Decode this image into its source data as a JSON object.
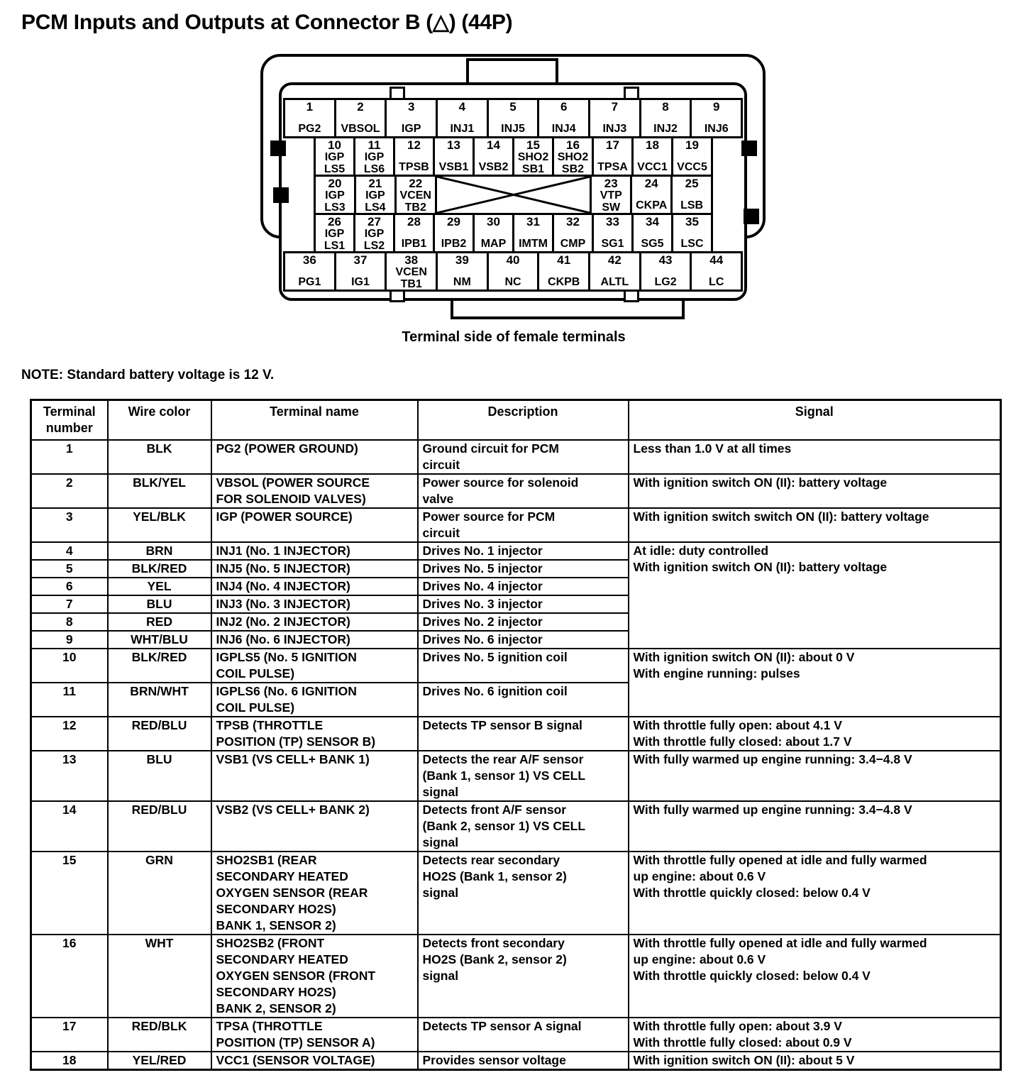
{
  "title": "PCM Inputs and Outputs at Connector B (△) (44P)",
  "connector": {
    "caption": "Terminal side of female terminals",
    "rows": [
      {
        "inset": false,
        "pins": [
          {
            "n": "1",
            "label": "PG2"
          },
          {
            "n": "2",
            "label": "VBSOL"
          },
          {
            "n": "3",
            "label": "IGP"
          },
          {
            "n": "4",
            "label": "INJ1"
          },
          {
            "n": "5",
            "label": "INJ5"
          },
          {
            "n": "6",
            "label": "INJ4"
          },
          {
            "n": "7",
            "label": "INJ3"
          },
          {
            "n": "8",
            "label": "INJ2"
          },
          {
            "n": "9",
            "label": "INJ6"
          }
        ]
      },
      {
        "inset": true,
        "pins": [
          {
            "n": "10",
            "label": "IGP\nLS5"
          },
          {
            "n": "11",
            "label": "IGP\nLS6"
          },
          {
            "n": "12",
            "label": "TPSB"
          },
          {
            "n": "13",
            "label": "VSB1"
          },
          {
            "n": "14",
            "label": "VSB2"
          },
          {
            "n": "15",
            "label": "SHO2\nSB1"
          },
          {
            "n": "16",
            "label": "SHO2\nSB2"
          },
          {
            "n": "17",
            "label": "TPSA"
          },
          {
            "n": "18",
            "label": "VCC1"
          },
          {
            "n": "19",
            "label": "VCC5"
          }
        ]
      },
      {
        "inset": true,
        "pins": [
          {
            "n": "20",
            "label": "IGP\nLS3"
          },
          {
            "n": "21",
            "label": "IGP\nLS4"
          },
          {
            "n": "22",
            "label": "VCEN\nTB2"
          },
          {
            "blocked": true,
            "span": 4
          },
          {
            "n": "23",
            "label": "VTP\nSW"
          },
          {
            "n": "24",
            "label": "CKPA"
          },
          {
            "n": "25",
            "label": "LSB"
          }
        ]
      },
      {
        "inset": true,
        "pins": [
          {
            "n": "26",
            "label": "IGP\nLS1"
          },
          {
            "n": "27",
            "label": "IGP\nLS2"
          },
          {
            "n": "28",
            "label": "IPB1"
          },
          {
            "n": "29",
            "label": "IPB2"
          },
          {
            "n": "30",
            "label": "MAP"
          },
          {
            "n": "31",
            "label": "IMTM"
          },
          {
            "n": "32",
            "label": "CMP"
          },
          {
            "n": "33",
            "label": "SG1"
          },
          {
            "n": "34",
            "label": "SG5"
          },
          {
            "n": "35",
            "label": "LSC"
          }
        ]
      },
      {
        "inset": false,
        "pins": [
          {
            "n": "36",
            "label": "PG1"
          },
          {
            "n": "37",
            "label": "IG1"
          },
          {
            "n": "38",
            "label": "VCEN\nTB1"
          },
          {
            "n": "39",
            "label": "NM"
          },
          {
            "n": "40",
            "label": "NC"
          },
          {
            "n": "41",
            "label": "CKPB"
          },
          {
            "n": "42",
            "label": "ALTL"
          },
          {
            "n": "43",
            "label": "LG2"
          },
          {
            "n": "44",
            "label": "LC"
          }
        ]
      }
    ]
  },
  "note": "NOTE: Standard battery voltage is 12 V.",
  "table": {
    "headers": [
      "Terminal\nnumber",
      "Wire color",
      "Terminal name",
      "Description",
      "Signal"
    ],
    "rows": [
      {
        "terminal": "1",
        "wire": "BLK",
        "name": "PG2 (POWER GROUND)",
        "desc": "Ground circuit for PCM\ncircuit",
        "signal": "Less than 1.0 V at all times"
      },
      {
        "terminal": "2",
        "wire": "BLK/YEL",
        "name": "VBSOL (POWER SOURCE\nFOR SOLENOID VALVES)",
        "desc": "Power source for solenoid\nvalve",
        "signal": "With ignition switch ON (II): battery voltage"
      },
      {
        "terminal": "3",
        "wire": "YEL/BLK",
        "name": "IGP (POWER SOURCE)",
        "desc": "Power source for PCM\ncircuit",
        "signal": "With ignition switch switch ON (II): battery voltage"
      },
      {
        "terminal": "4",
        "wire": "BRN",
        "name": "INJ1 (No. 1 INJECTOR)",
        "desc": "Drives No. 1 injector",
        "signal": "At idle: duty controlled\nWith ignition switch ON (II): battery voltage",
        "signal_rowspan": 6,
        "thin": true
      },
      {
        "terminal": "5",
        "wire": "BLK/RED",
        "name": "INJ5 (No. 5 INJECTOR)",
        "desc": "Drives No. 5 injector",
        "signal": null,
        "thin": true
      },
      {
        "terminal": "6",
        "wire": "YEL",
        "name": "INJ4 (No. 4 INJECTOR)",
        "desc": "Drives No. 4 injector",
        "signal": null,
        "thin": true
      },
      {
        "terminal": "7",
        "wire": "BLU",
        "name": "INJ3 (No. 3 INJECTOR)",
        "desc": "Drives No. 3 injector",
        "signal": null,
        "thin": true
      },
      {
        "terminal": "8",
        "wire": "RED",
        "name": "INJ2 (No. 2 INJECTOR)",
        "desc": "Drives No. 2 injector",
        "signal": null,
        "thin": true
      },
      {
        "terminal": "9",
        "wire": "WHT/BLU",
        "name": "INJ6 (No. 6 INJECTOR)",
        "desc": "Drives No. 6 injector",
        "signal": null,
        "thin": true
      },
      {
        "terminal": "10",
        "wire": "BLK/RED",
        "name": "IGPLS5 (No. 5 IGNITION\nCOIL PULSE)",
        "desc": "Drives No. 5 ignition coil",
        "signal": "With ignition switch ON (II): about 0 V\nWith engine running: pulses",
        "signal_rowspan": 2
      },
      {
        "terminal": "11",
        "wire": "BRN/WHT",
        "name": "IGPLS6 (No. 6 IGNITION\nCOIL PULSE)",
        "desc": "Drives No. 6 ignition coil",
        "signal": null
      },
      {
        "terminal": "12",
        "wire": "RED/BLU",
        "name": "TPSB (THROTTLE\nPOSITION (TP) SENSOR B)",
        "desc": "Detects TP sensor B signal",
        "signal": "With throttle fully open: about 4.1 V\nWith throttle fully closed: about 1.7 V"
      },
      {
        "terminal": "13",
        "wire": "BLU",
        "name": "VSB1 (VS CELL+ BANK 1)",
        "desc": "Detects the rear A/F sensor\n(Bank 1, sensor 1) VS CELL\nsignal",
        "signal": "With fully warmed up engine running: 3.4−4.8 V"
      },
      {
        "terminal": "14",
        "wire": "RED/BLU",
        "name": "VSB2 (VS CELL+ BANK 2)",
        "desc": "Detects front A/F sensor\n(Bank 2, sensor 1) VS CELL\nsignal",
        "signal": "With fully warmed up engine running: 3.4−4.8 V"
      },
      {
        "terminal": "15",
        "wire": "GRN",
        "name": "SHO2SB1 (REAR\nSECONDARY HEATED\nOXYGEN SENSOR (REAR\nSECONDARY HO2S)\nBANK 1, SENSOR 2)",
        "desc": "Detects rear secondary\nHO2S (Bank 1, sensor 2)\nsignal",
        "signal": "With throttle fully opened at idle and fully warmed\nup engine: about 0.6 V\nWith throttle quickly closed: below 0.4 V"
      },
      {
        "terminal": "16",
        "wire": "WHT",
        "name": "SHO2SB2 (FRONT\nSECONDARY HEATED\nOXYGEN SENSOR (FRONT\nSECONDARY HO2S)\nBANK 2, SENSOR 2)",
        "desc": "Detects front secondary\nHO2S (Bank 2, sensor 2)\nsignal",
        "signal": "With throttle fully opened at idle and fully warmed\nup engine: about 0.6 V\nWith throttle quickly closed: below 0.4 V"
      },
      {
        "terminal": "17",
        "wire": "RED/BLK",
        "name": "TPSA (THROTTLE\nPOSITION (TP) SENSOR A)",
        "desc": "Detects TP sensor A signal",
        "signal": "With throttle fully open: about 3.9 V\nWith throttle fully closed: about 0.9 V"
      },
      {
        "terminal": "18",
        "wire": "YEL/RED",
        "name": "VCC1 (SENSOR VOLTAGE)",
        "desc": "Provides sensor voltage",
        "signal": "With ignition switch ON (II): about 5 V"
      }
    ]
  }
}
